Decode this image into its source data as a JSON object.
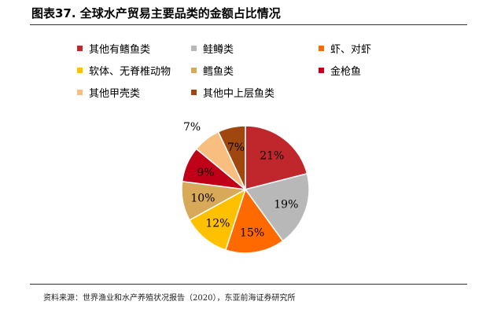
{
  "title": "图表37. 全球水产贸易主要品类的金额占比情况",
  "source": "资料来源：世界渔业和水产养殖状况报告（2020），东亚前海证券研究所",
  "chart_data": {
    "type": "pie",
    "title": "",
    "legend_position": "top",
    "unit": "%",
    "categories": [
      "其他有鳍鱼类",
      "鲑鳟类",
      "虾、对虾",
      "软体、无脊椎动物",
      "鳕鱼类",
      "金枪鱼",
      "其他甲壳类",
      "其他中上层鱼类"
    ],
    "values": [
      21,
      19,
      15,
      12,
      10,
      9,
      7,
      7
    ],
    "labels": [
      "21%",
      "19%",
      "15%",
      "12%",
      "10%",
      "9%",
      "7%",
      "7%"
    ],
    "colors": [
      "#c0272d",
      "#b8b8b8",
      "#ff6a00",
      "#ffc000",
      "#d9a95a",
      "#c00018",
      "#f8be80",
      "#a0470f"
    ]
  }
}
